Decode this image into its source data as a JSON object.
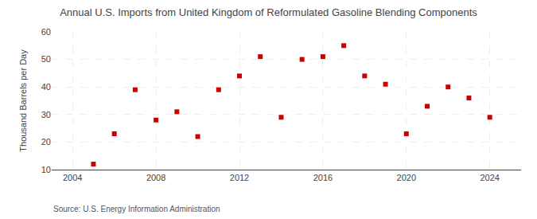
{
  "chart_data": {
    "type": "scatter",
    "title": "Annual U.S. Imports from United Kingdom of Reformulated Gasoline Blending Components",
    "ylabel": "Thousand Barrels per Day",
    "source": "Source: U.S. Energy Information Administration",
    "x": [
      2005,
      2006,
      2007,
      2008,
      2009,
      2010,
      2011,
      2012,
      2013,
      2014,
      2015,
      2016,
      2017,
      2018,
      2019,
      2020,
      2021,
      2022,
      2023,
      2024
    ],
    "values": [
      12,
      23,
      39,
      28,
      31,
      22,
      39,
      44,
      51,
      29,
      50,
      51,
      55,
      44,
      41,
      23,
      33,
      40,
      36,
      29
    ],
    "color": "#cc0000",
    "marker": "square",
    "xlim": [
      2003.0,
      2025.5
    ],
    "ylim": [
      10,
      60
    ],
    "xticks": [
      2004,
      2008,
      2012,
      2016,
      2020,
      2024
    ],
    "yticks": [
      10,
      20,
      30,
      40,
      50,
      60
    ],
    "grid": true
  }
}
